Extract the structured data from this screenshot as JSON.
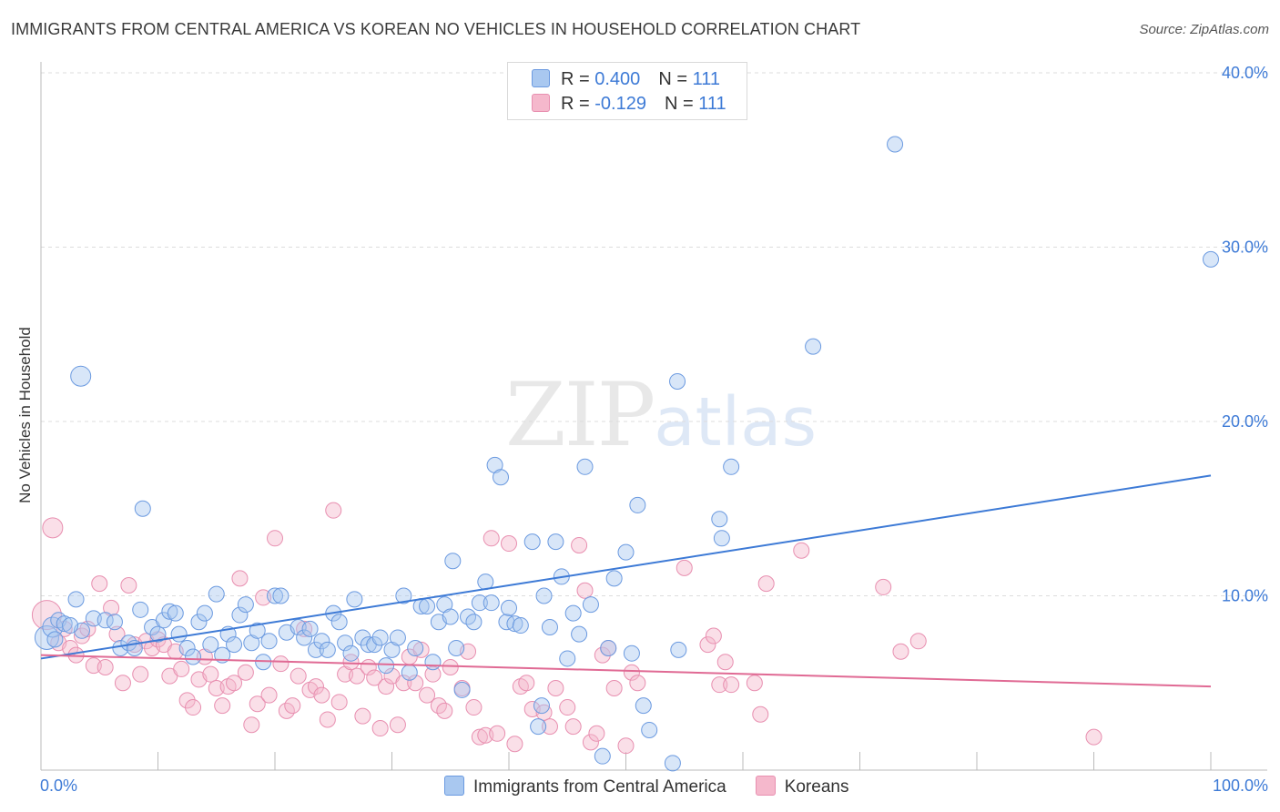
{
  "title": "IMMIGRANTS FROM CENTRAL AMERICA VS KOREAN NO VEHICLES IN HOUSEHOLD CORRELATION CHART",
  "source": "Source: ZipAtlas.com",
  "watermark": {
    "zip": "ZIP",
    "atlas": "atlas"
  },
  "colors": {
    "blue": "#3d7ad6",
    "blue_fill": "#a9c8f0",
    "pink": "#e06a94",
    "pink_fill": "#f5b8cc",
    "grid": "#dddddd"
  },
  "legend": {
    "rows": [
      {
        "r_label": "R = ",
        "r_value": "0.400",
        "n_label": "N = ",
        "n_value": "111",
        "color": "#a9c8f0"
      },
      {
        "r_label": "R = ",
        "r_value": "-0.129",
        "n_label": "N = ",
        "n_value": "111",
        "color": "#f5b8cc"
      }
    ]
  },
  "bottom_legend": [
    {
      "label": "Immigrants from Central America",
      "color": "#a9c8f0"
    },
    {
      "label": "Koreans",
      "color": "#f5b8cc"
    }
  ],
  "chart_data": {
    "type": "scatter",
    "title": "IMMIGRANTS FROM CENTRAL AMERICA VS KOREAN NO VEHICLES IN HOUSEHOLD CORRELATION CHART",
    "xlabel": "",
    "ylabel": "No Vehicles in Household",
    "xlim": [
      0,
      100
    ],
    "ylim": [
      0,
      40
    ],
    "x_tick_labels": [
      "0.0%",
      "100.0%"
    ],
    "y_ticks": [
      {
        "value": 10,
        "label": "10.0%"
      },
      {
        "value": 20,
        "label": "20.0%"
      },
      {
        "value": 30,
        "label": "30.0%"
      },
      {
        "value": 40,
        "label": "40.0%"
      }
    ],
    "series": [
      {
        "name": "Immigrants from Central America",
        "color": "#3d7ad6",
        "trend": {
          "x": [
            0,
            100
          ],
          "y": [
            6.4,
            16.9
          ]
        },
        "points": [
          [
            0.5,
            7.6,
            5
          ],
          [
            1,
            8.2,
            4
          ],
          [
            1.5,
            8.6,
            3
          ],
          [
            2,
            8.4,
            3
          ],
          [
            3,
            9.8,
            3
          ],
          [
            3.5,
            8.0,
            3
          ],
          [
            3.4,
            22.6,
            4
          ],
          [
            4.5,
            8.7,
            3
          ],
          [
            5.5,
            8.6,
            3
          ],
          [
            6.3,
            8.5,
            3
          ],
          [
            6.8,
            7.0,
            3
          ],
          [
            7.5,
            7.3,
            3
          ],
          [
            8,
            7.0,
            3
          ],
          [
            8.5,
            9.2,
            3
          ],
          [
            8.7,
            15.0,
            3
          ],
          [
            9.5,
            8.2,
            3
          ],
          [
            10,
            7.8,
            3
          ],
          [
            10.5,
            8.6,
            3
          ],
          [
            11,
            9.1,
            3
          ],
          [
            11.5,
            9.0,
            3
          ],
          [
            11.8,
            7.8,
            3
          ],
          [
            12.5,
            7.0,
            3
          ],
          [
            13,
            6.5,
            3
          ],
          [
            13.5,
            8.5,
            3
          ],
          [
            14,
            9.0,
            3
          ],
          [
            14.5,
            7.2,
            3
          ],
          [
            15,
            10.1,
            3
          ],
          [
            15.5,
            6.6,
            3
          ],
          [
            16,
            7.8,
            3
          ],
          [
            16.5,
            7.2,
            3
          ],
          [
            17,
            8.9,
            3
          ],
          [
            17.5,
            9.5,
            3
          ],
          [
            18,
            7.3,
            3
          ],
          [
            18.5,
            8.0,
            3
          ],
          [
            19,
            6.2,
            3
          ],
          [
            19.5,
            7.4,
            3
          ],
          [
            20,
            10.0,
            3
          ],
          [
            20.5,
            10.0,
            3
          ],
          [
            21,
            7.9,
            3
          ],
          [
            22,
            8.2,
            3
          ],
          [
            22.5,
            7.6,
            3
          ],
          [
            23,
            8.1,
            3
          ],
          [
            23.5,
            6.9,
            3
          ],
          [
            24,
            7.4,
            3
          ],
          [
            24.5,
            6.9,
            3
          ],
          [
            25,
            9.0,
            3
          ],
          [
            25.5,
            8.5,
            3
          ],
          [
            26,
            7.3,
            3
          ],
          [
            26.5,
            6.7,
            3
          ],
          [
            26.8,
            9.8,
            3
          ],
          [
            27.5,
            7.6,
            3
          ],
          [
            28,
            7.2,
            3
          ],
          [
            28.5,
            7.2,
            3
          ],
          [
            29,
            7.6,
            3
          ],
          [
            29.5,
            6.0,
            3
          ],
          [
            30,
            6.9,
            3
          ],
          [
            30.5,
            7.6,
            3
          ],
          [
            31,
            10.0,
            3
          ],
          [
            31.5,
            5.6,
            3
          ],
          [
            32,
            7.0,
            3
          ],
          [
            32.5,
            9.4,
            3
          ],
          [
            33,
            9.4,
            3
          ],
          [
            33.5,
            6.2,
            3
          ],
          [
            34,
            8.5,
            3
          ],
          [
            34.5,
            9.5,
            3
          ],
          [
            35,
            8.8,
            3
          ],
          [
            35.5,
            7.0,
            3
          ],
          [
            35.2,
            12.0,
            3
          ],
          [
            36,
            4.6,
            3
          ],
          [
            36.5,
            8.8,
            3
          ],
          [
            37,
            8.5,
            3
          ],
          [
            37.5,
            9.6,
            3
          ],
          [
            38,
            10.8,
            3
          ],
          [
            38.5,
            9.6,
            3
          ],
          [
            38.8,
            17.5,
            3
          ],
          [
            39.3,
            16.8,
            3
          ],
          [
            39.8,
            8.5,
            3
          ],
          [
            40,
            9.3,
            3
          ],
          [
            40.5,
            8.4,
            3
          ],
          [
            41,
            8.3,
            3
          ],
          [
            42,
            13.1,
            3
          ],
          [
            42.5,
            2.5,
            3
          ],
          [
            42.8,
            3.7,
            3
          ],
          [
            43,
            10.0,
            3
          ],
          [
            43.5,
            8.2,
            3
          ],
          [
            44,
            13.1,
            3
          ],
          [
            44.5,
            11.1,
            3
          ],
          [
            45,
            6.4,
            3
          ],
          [
            45.5,
            9.0,
            3
          ],
          [
            46,
            7.8,
            3
          ],
          [
            46.5,
            17.4,
            3
          ],
          [
            47,
            9.5,
            3
          ],
          [
            48,
            0.8,
            3
          ],
          [
            48.5,
            7.0,
            3
          ],
          [
            49,
            11.0,
            3
          ],
          [
            50,
            12.5,
            3
          ],
          [
            50.5,
            6.7,
            3
          ],
          [
            51,
            15.2,
            3
          ],
          [
            51.5,
            3.7,
            3
          ],
          [
            52,
            2.3,
            3
          ],
          [
            54,
            0.4,
            3
          ],
          [
            54.5,
            6.9,
            3
          ],
          [
            54.4,
            22.3,
            3
          ],
          [
            58,
            14.4,
            3
          ],
          [
            58.2,
            13.3,
            3
          ],
          [
            59,
            17.4,
            3
          ],
          [
            66,
            24.3,
            3
          ],
          [
            73,
            35.9,
            3
          ],
          [
            100,
            29.3,
            3
          ],
          [
            1.2,
            7.5,
            3
          ],
          [
            2.5,
            8.3,
            3
          ]
        ]
      },
      {
        "name": "Koreans",
        "color": "#e06a94",
        "trend": {
          "x": [
            0,
            100
          ],
          "y": [
            6.6,
            4.8
          ]
        },
        "points": [
          [
            0.5,
            8.9,
            6
          ],
          [
            1,
            13.9,
            4
          ],
          [
            1.5,
            7.3,
            3
          ],
          [
            2,
            8.1,
            3
          ],
          [
            2.5,
            7.0,
            3
          ],
          [
            3,
            6.6,
            3
          ],
          [
            3.5,
            7.7,
            3
          ],
          [
            4,
            8.1,
            3
          ],
          [
            4.5,
            6.0,
            3
          ],
          [
            5,
            10.7,
            3
          ],
          [
            5.5,
            5.9,
            3
          ],
          [
            6,
            9.3,
            3
          ],
          [
            6.5,
            7.8,
            3
          ],
          [
            7,
            5.0,
            3
          ],
          [
            7.5,
            10.6,
            3
          ],
          [
            8,
            7.2,
            3
          ],
          [
            8.5,
            5.5,
            3
          ],
          [
            9,
            7.4,
            3
          ],
          [
            9.5,
            7.0,
            3
          ],
          [
            10,
            7.5,
            3
          ],
          [
            10.5,
            7.2,
            3
          ],
          [
            11,
            5.4,
            3
          ],
          [
            11.5,
            6.8,
            3
          ],
          [
            12,
            5.8,
            3
          ],
          [
            12.5,
            4.0,
            3
          ],
          [
            13,
            3.6,
            3
          ],
          [
            13.5,
            5.2,
            3
          ],
          [
            14,
            6.5,
            3
          ],
          [
            14.5,
            5.5,
            3
          ],
          [
            15,
            4.7,
            3
          ],
          [
            15.5,
            3.7,
            3
          ],
          [
            16,
            4.8,
            3
          ],
          [
            16.5,
            5.0,
            3
          ],
          [
            17,
            11.0,
            3
          ],
          [
            17.5,
            5.6,
            3
          ],
          [
            18,
            2.6,
            3
          ],
          [
            18.5,
            3.8,
            3
          ],
          [
            19,
            9.9,
            3
          ],
          [
            19.5,
            4.3,
            3
          ],
          [
            20,
            13.3,
            3
          ],
          [
            20.5,
            6.1,
            3
          ],
          [
            21,
            3.4,
            3
          ],
          [
            21.5,
            3.7,
            3
          ],
          [
            22,
            5.4,
            3
          ],
          [
            22.5,
            8.1,
            3
          ],
          [
            23,
            4.6,
            3
          ],
          [
            23.5,
            4.8,
            3
          ],
          [
            24,
            4.3,
            3
          ],
          [
            24.5,
            2.9,
            3
          ],
          [
            25,
            14.9,
            3
          ],
          [
            25.5,
            3.9,
            3
          ],
          [
            26,
            5.5,
            3
          ],
          [
            26.5,
            6.2,
            3
          ],
          [
            27,
            5.4,
            3
          ],
          [
            27.5,
            3.1,
            3
          ],
          [
            28,
            5.9,
            3
          ],
          [
            28.5,
            5.3,
            3
          ],
          [
            29,
            2.4,
            3
          ],
          [
            29.5,
            4.8,
            3
          ],
          [
            30,
            5.4,
            3
          ],
          [
            30.5,
            2.6,
            3
          ],
          [
            31,
            5.0,
            3
          ],
          [
            31.5,
            6.5,
            3
          ],
          [
            32,
            5.0,
            3
          ],
          [
            32.5,
            6.9,
            3
          ],
          [
            33,
            4.3,
            3
          ],
          [
            33.5,
            5.5,
            3
          ],
          [
            34,
            3.7,
            3
          ],
          [
            34.5,
            3.4,
            3
          ],
          [
            35,
            5.9,
            3
          ],
          [
            36,
            4.7,
            3
          ],
          [
            36.5,
            6.8,
            3
          ],
          [
            37,
            3.6,
            3
          ],
          [
            37.5,
            1.9,
            3
          ],
          [
            38,
            2.0,
            3
          ],
          [
            38.5,
            13.3,
            3
          ],
          [
            39,
            2.1,
            3
          ],
          [
            40,
            13.0,
            3
          ],
          [
            40.5,
            1.5,
            3
          ],
          [
            41,
            4.8,
            3
          ],
          [
            41.5,
            5.0,
            3
          ],
          [
            42,
            3.5,
            3
          ],
          [
            43,
            3.3,
            3
          ],
          [
            43.5,
            2.5,
            3
          ],
          [
            44,
            4.7,
            3
          ],
          [
            45,
            3.6,
            3
          ],
          [
            45.5,
            2.5,
            3
          ],
          [
            46,
            12.9,
            3
          ],
          [
            46.5,
            10.3,
            3
          ],
          [
            47,
            1.6,
            3
          ],
          [
            47.5,
            2.1,
            3
          ],
          [
            48,
            6.6,
            3
          ],
          [
            48.5,
            7.0,
            3
          ],
          [
            49,
            4.7,
            3
          ],
          [
            50,
            1.4,
            3
          ],
          [
            50.5,
            5.6,
            3
          ],
          [
            51,
            5.0,
            3
          ],
          [
            55,
            11.6,
            3
          ],
          [
            57,
            7.2,
            3
          ],
          [
            57.5,
            7.7,
            3
          ],
          [
            58,
            4.9,
            3
          ],
          [
            58.5,
            6.2,
            3
          ],
          [
            59,
            4.9,
            3
          ],
          [
            61,
            5.0,
            3
          ],
          [
            61.5,
            3.2,
            3
          ],
          [
            62,
            10.7,
            3
          ],
          [
            65,
            12.6,
            3
          ],
          [
            72,
            10.5,
            3
          ],
          [
            73.5,
            6.8,
            3
          ],
          [
            75,
            7.4,
            3
          ],
          [
            90,
            1.9,
            3
          ]
        ]
      }
    ]
  }
}
